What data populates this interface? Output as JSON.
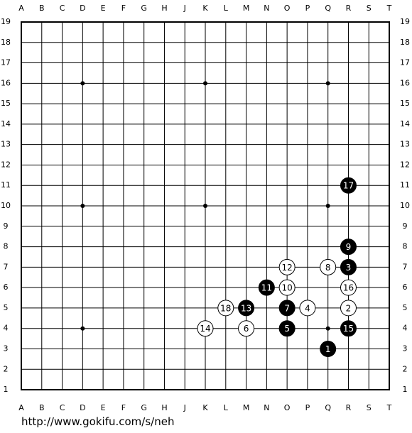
{
  "board": {
    "columns": [
      "A",
      "B",
      "C",
      "D",
      "E",
      "F",
      "G",
      "H",
      "J",
      "K",
      "L",
      "M",
      "N",
      "O",
      "P",
      "Q",
      "R",
      "S",
      "T"
    ],
    "rows": [
      19,
      18,
      17,
      16,
      15,
      14,
      13,
      12,
      11,
      10,
      9,
      8,
      7,
      6,
      5,
      4,
      3,
      2,
      1
    ],
    "star_points": [
      [
        "D",
        16
      ],
      [
        "K",
        16
      ],
      [
        "Q",
        16
      ],
      [
        "D",
        10
      ],
      [
        "K",
        10
      ],
      [
        "Q",
        10
      ],
      [
        "D",
        4
      ],
      [
        "K",
        4
      ],
      [
        "Q",
        4
      ]
    ],
    "stones": [
      {
        "move": 1,
        "color": "black",
        "col": "Q",
        "row": 3
      },
      {
        "move": 2,
        "color": "white",
        "col": "R",
        "row": 5
      },
      {
        "move": 3,
        "color": "black",
        "col": "R",
        "row": 7
      },
      {
        "move": 4,
        "color": "white",
        "col": "P",
        "row": 5
      },
      {
        "move": 5,
        "color": "black",
        "col": "O",
        "row": 4
      },
      {
        "move": 6,
        "color": "white",
        "col": "M",
        "row": 4
      },
      {
        "move": 7,
        "color": "black",
        "col": "O",
        "row": 5
      },
      {
        "move": 8,
        "color": "white",
        "col": "Q",
        "row": 7
      },
      {
        "move": 9,
        "color": "black",
        "col": "R",
        "row": 8
      },
      {
        "move": 10,
        "color": "white",
        "col": "O",
        "row": 6
      },
      {
        "move": 11,
        "color": "black",
        "col": "N",
        "row": 6
      },
      {
        "move": 12,
        "color": "white",
        "col": "O",
        "row": 7
      },
      {
        "move": 13,
        "color": "black",
        "col": "M",
        "row": 5
      },
      {
        "move": 14,
        "color": "white",
        "col": "K",
        "row": 4
      },
      {
        "move": 15,
        "color": "black",
        "col": "R",
        "row": 4
      },
      {
        "move": 16,
        "color": "white",
        "col": "R",
        "row": 6
      },
      {
        "move": 17,
        "color": "black",
        "col": "R",
        "row": 11
      },
      {
        "move": 18,
        "color": "white",
        "col": "L",
        "row": 5
      }
    ]
  },
  "footer": {
    "url": "http://www.gokifu.com/s/neh"
  }
}
